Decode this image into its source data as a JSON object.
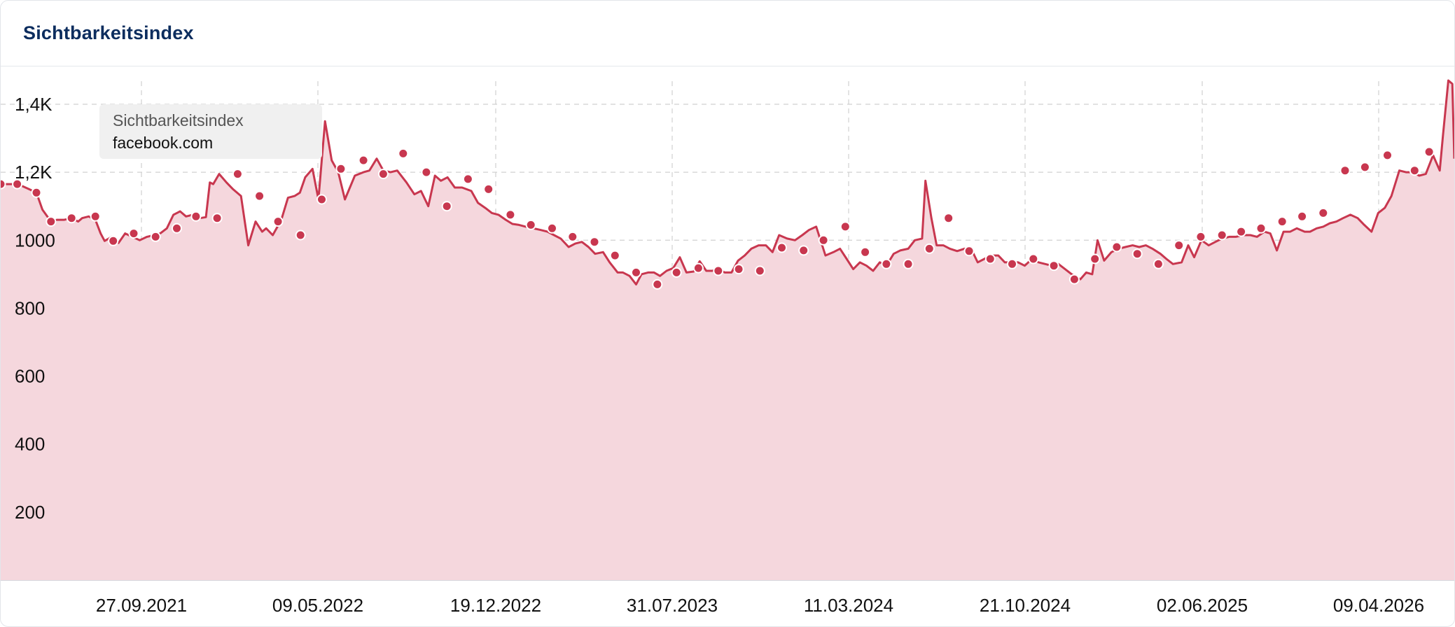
{
  "header": {
    "title": "Sichtbarkeitsindex"
  },
  "legend": {
    "title": "Sichtbarkeitsindex",
    "domain": "facebook.com"
  },
  "colors": {
    "line": "#c8374f",
    "area": "#f5d7dd",
    "title": "#0c2d5e",
    "grid": "#d0d0d0"
  },
  "chart_data": {
    "type": "area",
    "title": "Sichtbarkeitsindex",
    "series": [
      {
        "name": "facebook.com"
      }
    ],
    "y_ticks": [
      {
        "value": 200,
        "label": "200"
      },
      {
        "value": 400,
        "label": "400"
      },
      {
        "value": 600,
        "label": "600"
      },
      {
        "value": 800,
        "label": "800"
      },
      {
        "value": 1000,
        "label": "1000"
      },
      {
        "value": 1200,
        "label": "1,2K"
      },
      {
        "value": 1400,
        "label": "1,4K"
      }
    ],
    "x_ticks": [
      "27.09.2021",
      "09.05.2022",
      "19.12.2022",
      "31.07.2023",
      "11.03.2024",
      "21.10.2024",
      "02.06.2025",
      "09.04.2026"
    ],
    "ylim": [
      0,
      1485
    ],
    "grid": true,
    "points": [
      [
        0.0,
        1165
      ],
      [
        0.026,
        1165
      ],
      [
        0.043,
        1150
      ],
      [
        0.054,
        1140
      ],
      [
        0.063,
        1090
      ],
      [
        0.076,
        1055
      ],
      [
        0.085,
        1060
      ],
      [
        0.096,
        1060
      ],
      [
        0.107,
        1065
      ],
      [
        0.117,
        1055
      ],
      [
        0.123,
        1065
      ],
      [
        0.133,
        1070
      ],
      [
        0.143,
        1060
      ],
      [
        0.151,
        1020
      ],
      [
        0.157,
        998
      ],
      [
        0.168,
        1010
      ],
      [
        0.178,
        992
      ],
      [
        0.188,
        1020
      ],
      [
        0.199,
        1010
      ],
      [
        0.21,
        1000
      ],
      [
        0.221,
        1010
      ],
      [
        0.232,
        1015
      ],
      [
        0.241,
        1020
      ],
      [
        0.251,
        1035
      ],
      [
        0.261,
        1075
      ],
      [
        0.271,
        1085
      ],
      [
        0.28,
        1070
      ],
      [
        0.29,
        1075
      ],
      [
        0.301,
        1065
      ],
      [
        0.31,
        1068
      ],
      [
        0.316,
        1170
      ],
      [
        0.321,
        1165
      ],
      [
        0.33,
        1195
      ],
      [
        0.341,
        1170
      ],
      [
        0.351,
        1150
      ],
      [
        0.363,
        1130
      ],
      [
        0.374,
        985
      ],
      [
        0.385,
        1055
      ],
      [
        0.395,
        1025
      ],
      [
        0.401,
        1035
      ],
      [
        0.411,
        1015
      ],
      [
        0.424,
        1060
      ],
      [
        0.434,
        1125
      ],
      [
        0.444,
        1130
      ],
      [
        0.452,
        1140
      ],
      [
        0.46,
        1185
      ],
      [
        0.471,
        1210
      ],
      [
        0.48,
        1120
      ],
      [
        0.49,
        1350
      ],
      [
        0.5,
        1235
      ],
      [
        0.51,
        1200
      ],
      [
        0.52,
        1120
      ],
      [
        0.535,
        1190
      ],
      [
        0.548,
        1200
      ],
      [
        0.557,
        1205
      ],
      [
        0.568,
        1240
      ],
      [
        0.578,
        1205
      ],
      [
        0.589,
        1200
      ],
      [
        0.599,
        1205
      ],
      [
        0.613,
        1170
      ],
      [
        0.625,
        1135
      ],
      [
        0.635,
        1145
      ],
      [
        0.646,
        1100
      ],
      [
        0.656,
        1190
      ],
      [
        0.665,
        1175
      ],
      [
        0.675,
        1185
      ],
      [
        0.686,
        1155
      ],
      [
        0.697,
        1155
      ],
      [
        0.711,
        1145
      ],
      [
        0.721,
        1110
      ],
      [
        0.732,
        1095
      ],
      [
        0.742,
        1080
      ],
      [
        0.752,
        1075
      ],
      [
        0.763,
        1060
      ],
      [
        0.773,
        1048
      ],
      [
        0.783,
        1045
      ],
      [
        0.793,
        1040
      ],
      [
        0.805,
        1035
      ],
      [
        0.816,
        1030
      ],
      [
        0.826,
        1025
      ],
      [
        0.836,
        1015
      ],
      [
        0.846,
        1005
      ],
      [
        0.858,
        980
      ],
      [
        0.868,
        990
      ],
      [
        0.878,
        995
      ],
      [
        0.888,
        980
      ],
      [
        0.898,
        960
      ],
      [
        0.91,
        965
      ],
      [
        0.92,
        935
      ],
      [
        0.932,
        905
      ],
      [
        0.94,
        905
      ],
      [
        0.95,
        895
      ],
      [
        0.96,
        870
      ],
      [
        0.968,
        900
      ],
      [
        0.978,
        905
      ],
      [
        0.987,
        905
      ],
      [
        0.996,
        895
      ],
      [
        1.006,
        910
      ],
      [
        1.016,
        918
      ],
      [
        1.026,
        950
      ],
      [
        1.036,
        905
      ],
      [
        1.047,
        908
      ],
      [
        1.056,
        938
      ],
      [
        1.066,
        910
      ],
      [
        1.075,
        910
      ],
      [
        1.084,
        915
      ],
      [
        1.094,
        905
      ],
      [
        1.104,
        905
      ],
      [
        1.114,
        940
      ],
      [
        1.124,
        955
      ],
      [
        1.134,
        975
      ],
      [
        1.145,
        985
      ],
      [
        1.156,
        985
      ],
      [
        1.166,
        965
      ],
      [
        1.176,
        1015
      ],
      [
        1.188,
        1005
      ],
      [
        1.2,
        1000
      ],
      [
        1.211,
        1015
      ],
      [
        1.221,
        1030
      ],
      [
        1.232,
        1040
      ],
      [
        1.246,
        955
      ],
      [
        1.258,
        965
      ],
      [
        1.268,
        975
      ],
      [
        1.278,
        945
      ],
      [
        1.288,
        915
      ],
      [
        1.298,
        935
      ],
      [
        1.308,
        925
      ],
      [
        1.318,
        910
      ],
      [
        1.328,
        935
      ],
      [
        1.338,
        925
      ],
      [
        1.349,
        960
      ],
      [
        1.359,
        970
      ],
      [
        1.371,
        975
      ],
      [
        1.381,
        1000
      ],
      [
        1.392,
        1005
      ],
      [
        1.397,
        1175
      ],
      [
        1.406,
        1065
      ],
      [
        1.414,
        985
      ],
      [
        1.424,
        985
      ],
      [
        1.434,
        975
      ],
      [
        1.445,
        968
      ],
      [
        1.456,
        975
      ],
      [
        1.466,
        975
      ],
      [
        1.476,
        935
      ],
      [
        1.486,
        945
      ],
      [
        1.496,
        955
      ],
      [
        1.507,
        955
      ],
      [
        1.517,
        935
      ],
      [
        1.527,
        935
      ],
      [
        1.537,
        935
      ],
      [
        1.547,
        925
      ],
      [
        1.558,
        945
      ],
      [
        1.568,
        935
      ],
      [
        1.578,
        930
      ],
      [
        1.588,
        925
      ],
      [
        1.598,
        930
      ],
      [
        1.608,
        915
      ],
      [
        1.618,
        900
      ],
      [
        1.631,
        885
      ],
      [
        1.64,
        905
      ],
      [
        1.649,
        900
      ],
      [
        1.657,
        1000
      ],
      [
        1.667,
        940
      ],
      [
        1.678,
        965
      ],
      [
        1.689,
        975
      ],
      [
        1.699,
        980
      ],
      [
        1.71,
        985
      ],
      [
        1.72,
        980
      ],
      [
        1.73,
        985
      ],
      [
        1.74,
        975
      ],
      [
        1.752,
        960
      ],
      [
        1.761,
        945
      ],
      [
        1.771,
        930
      ],
      [
        1.784,
        935
      ],
      [
        1.794,
        985
      ],
      [
        1.803,
        950
      ],
      [
        1.814,
        1000
      ],
      [
        1.825,
        985
      ],
      [
        1.835,
        995
      ],
      [
        1.845,
        1005
      ],
      [
        1.856,
        1010
      ],
      [
        1.866,
        1010
      ],
      [
        1.877,
        1015
      ],
      [
        1.888,
        1015
      ],
      [
        1.898,
        1010
      ],
      [
        1.909,
        1025
      ],
      [
        1.918,
        1020
      ],
      [
        1.928,
        970
      ],
      [
        1.938,
        1025
      ],
      [
        1.948,
        1025
      ],
      [
        1.958,
        1035
      ],
      [
        1.97,
        1025
      ],
      [
        1.978,
        1025
      ],
      [
        1.988,
        1035
      ],
      [
        1.998,
        1040
      ],
      [
        2.008,
        1050
      ],
      [
        2.018,
        1055
      ],
      [
        2.028,
        1065
      ],
      [
        2.039,
        1075
      ],
      [
        2.05,
        1065
      ],
      [
        2.06,
        1045
      ],
      [
        2.071,
        1025
      ],
      [
        2.081,
        1080
      ],
      [
        2.091,
        1095
      ],
      [
        2.101,
        1130
      ],
      [
        2.113,
        1205
      ],
      [
        2.123,
        1200
      ],
      [
        2.133,
        1200
      ],
      [
        2.143,
        1190
      ],
      [
        2.153,
        1195
      ],
      [
        2.164,
        1250
      ],
      [
        2.174,
        1205
      ],
      [
        2.179,
        1310
      ],
      [
        2.187,
        1470
      ],
      [
        2.193,
        1460
      ],
      [
        2.196,
        1240
      ]
    ],
    "markers": [
      [
        0.0,
        1165
      ],
      [
        0.025,
        1165
      ],
      [
        0.054,
        1140
      ],
      [
        0.076,
        1055
      ],
      [
        0.107,
        1065
      ],
      [
        0.143,
        1070
      ],
      [
        0.17,
        998
      ],
      [
        0.201,
        1020
      ],
      [
        0.234,
        1010
      ],
      [
        0.266,
        1035
      ],
      [
        0.295,
        1070
      ],
      [
        0.327,
        1065
      ],
      [
        0.358,
        1195
      ],
      [
        0.391,
        1130
      ],
      [
        0.419,
        1055
      ],
      [
        0.453,
        1015
      ],
      [
        0.485,
        1120
      ],
      [
        0.514,
        1210
      ],
      [
        0.548,
        1235
      ],
      [
        0.578,
        1195
      ],
      [
        0.608,
        1255
      ],
      [
        0.643,
        1200
      ],
      [
        0.674,
        1100
      ],
      [
        0.706,
        1180
      ],
      [
        0.737,
        1150
      ],
      [
        0.77,
        1075
      ],
      [
        0.801,
        1045
      ],
      [
        0.833,
        1035
      ],
      [
        0.864,
        1010
      ],
      [
        0.897,
        995
      ],
      [
        0.928,
        955
      ],
      [
        0.96,
        905
      ],
      [
        0.992,
        870
      ],
      [
        1.021,
        905
      ],
      [
        1.054,
        918
      ],
      [
        1.084,
        910
      ],
      [
        1.115,
        915
      ],
      [
        1.147,
        910
      ],
      [
        1.18,
        978
      ],
      [
        1.213,
        970
      ],
      [
        1.243,
        1000
      ],
      [
        1.276,
        1040
      ],
      [
        1.306,
        965
      ],
      [
        1.338,
        930
      ],
      [
        1.371,
        930
      ],
      [
        1.403,
        975
      ],
      [
        1.432,
        1065
      ],
      [
        1.463,
        968
      ],
      [
        1.495,
        945
      ],
      [
        1.528,
        930
      ],
      [
        1.56,
        945
      ],
      [
        1.591,
        925
      ],
      [
        1.622,
        885
      ],
      [
        1.653,
        945
      ],
      [
        1.686,
        980
      ],
      [
        1.717,
        960
      ],
      [
        1.749,
        930
      ],
      [
        1.78,
        985
      ],
      [
        1.813,
        1010
      ],
      [
        1.845,
        1015
      ],
      [
        1.874,
        1025
      ],
      [
        1.904,
        1035
      ],
      [
        1.936,
        1055
      ],
      [
        1.966,
        1070
      ],
      [
        1.998,
        1080
      ],
      [
        2.031,
        1205
      ],
      [
        2.061,
        1215
      ],
      [
        2.095,
        1250
      ],
      [
        2.136,
        1205
      ],
      [
        2.158,
        1260
      ]
    ]
  }
}
